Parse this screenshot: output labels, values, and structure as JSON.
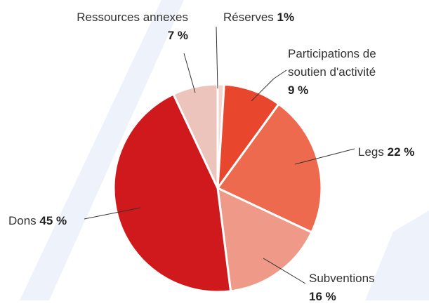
{
  "chart_data": {
    "type": "pie",
    "categories": [
      "Réserves",
      "Participations de soutien d'activité",
      "Legs",
      "Subventions",
      "Dons",
      "Ressources annexes"
    ],
    "values": [
      1,
      9,
      22,
      16,
      45,
      7
    ],
    "value_labels": [
      "1%",
      "9 %",
      "22 %",
      "16 %",
      "45 %",
      "7 %"
    ],
    "colors": [
      "#f3d6d0",
      "#e8472e",
      "#ee6a4e",
      "#ef9a88",
      "#d0191c",
      "#ecc4bc"
    ]
  }
}
